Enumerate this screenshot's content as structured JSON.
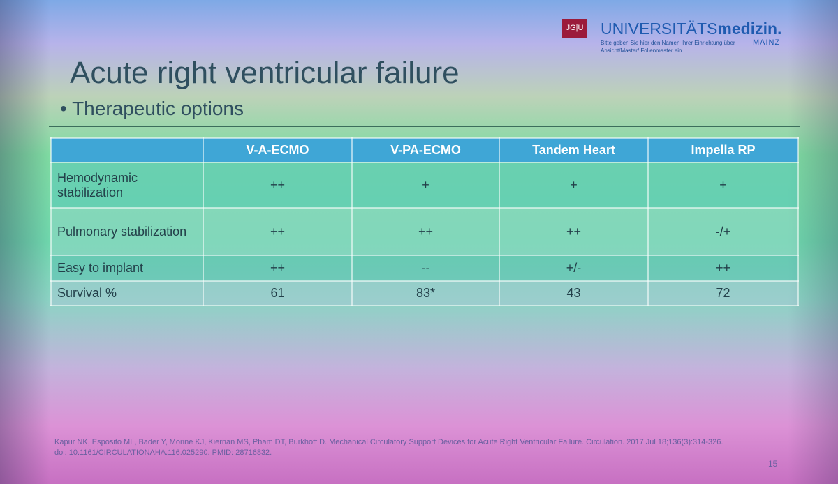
{
  "logo": {
    "mark": "JG|U",
    "brand_plain": "UNIVERSITÄTS",
    "brand_bold": "medizin.",
    "city": "MAINZ",
    "note": "Bitte geben Sie hier den Namen Ihrer Einrichtung über Ansicht/Master/ Folienmaster ein"
  },
  "header": {
    "title": "Acute right ventricular failure",
    "bullet": "Therapeutic options"
  },
  "table": {
    "columns": [
      "V-A-ECMO",
      "V-PA-ECMO",
      "Tandem Heart",
      "Impella RP"
    ],
    "rows": [
      [
        "Hemodynamic stabilization",
        "++",
        "+",
        "+",
        "+"
      ],
      [
        "Pulmonary stabilization",
        "++",
        "++",
        "++",
        "-/+"
      ],
      [
        "Easy to implant",
        "++",
        "--",
        "+/-",
        "++"
      ],
      [
        "Survival %",
        "61",
        "83*",
        "43",
        "72"
      ]
    ]
  },
  "citation": "Kapur NK, Esposito ML, Bader Y, Morine KJ, Kiernan MS, Pham DT, Burkhoff D. Mechanical Circulatory Support Devices for Acute Right Ventricular Failure. Circulation. 2017 Jul 18;136(3):314-326. doi: 10.1161/CIRCULATIONAHA.116.025290. PMID: 28716832.",
  "page_number": "15"
}
